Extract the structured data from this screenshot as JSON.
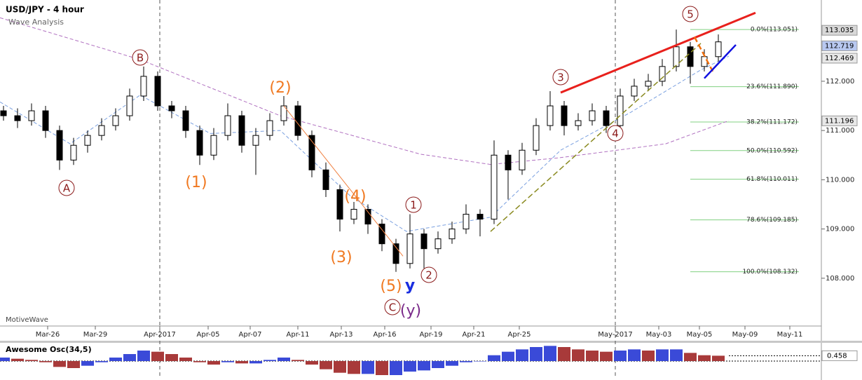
{
  "chart_data": {
    "type": "candlestick",
    "title": "USD/JPY - 4 hour",
    "subtitle": "Wave Analysis",
    "watermark": "MotiveWave",
    "xlim": [
      -0.25,
      58.35
    ],
    "ylim": [
      107.03,
      113.65
    ],
    "xticks": [
      {
        "value": 3.15,
        "label": "Mar-26"
      },
      {
        "value": 6.55,
        "label": "Mar-29"
      },
      {
        "value": 11.15,
        "label": "Apr-2017"
      },
      {
        "value": 14.6,
        "label": "Apr-05"
      },
      {
        "value": 17.6,
        "label": "Apr-07"
      },
      {
        "value": 21,
        "label": "Apr-11"
      },
      {
        "value": 24.1,
        "label": "Apr-13"
      },
      {
        "value": 27.2,
        "label": "Apr-16"
      },
      {
        "value": 30.5,
        "label": "Apr-19"
      },
      {
        "value": 33.55,
        "label": "Apr-21"
      },
      {
        "value": 36.8,
        "label": "Apr-25"
      },
      {
        "value": 43.65,
        "label": "May-2017"
      },
      {
        "value": 46.75,
        "label": "May-03"
      },
      {
        "value": 49.65,
        "label": "May-05"
      },
      {
        "value": 52.9,
        "label": "May-09"
      },
      {
        "value": 56.1,
        "label": "May-11"
      }
    ],
    "yticks": [
      {
        "value": 112,
        "label": "112.000"
      },
      {
        "value": 111,
        "label": "111.000"
      },
      {
        "value": 110,
        "label": "110.000"
      },
      {
        "value": 109,
        "label": "109.000"
      },
      {
        "value": 108,
        "label": "108.000"
      }
    ],
    "ohlc": [
      [
        111.4,
        111.5,
        111.2,
        111.3
      ],
      [
        111.3,
        111.45,
        111.05,
        111.2
      ],
      [
        111.2,
        111.55,
        111.1,
        111.4
      ],
      [
        111.4,
        111.5,
        110.85,
        111.0
      ],
      [
        111.0,
        111.1,
        110.2,
        110.4
      ],
      [
        110.4,
        110.85,
        110.3,
        110.7
      ],
      [
        110.7,
        111.0,
        110.55,
        110.9
      ],
      [
        110.9,
        111.25,
        110.8,
        111.1
      ],
      [
        111.1,
        111.45,
        111.0,
        111.3
      ],
      [
        111.3,
        111.85,
        111.2,
        111.7
      ],
      [
        111.7,
        112.3,
        111.6,
        112.1
      ],
      [
        112.1,
        112.2,
        111.4,
        111.5
      ],
      [
        111.5,
        111.6,
        111.25,
        111.4
      ],
      [
        111.4,
        111.5,
        110.85,
        111.0
      ],
      [
        111.0,
        111.1,
        110.3,
        110.5
      ],
      [
        110.5,
        111.05,
        110.4,
        110.9
      ],
      [
        110.9,
        111.55,
        110.8,
        111.3
      ],
      [
        111.3,
        111.4,
        110.55,
        110.7
      ],
      [
        110.7,
        111.05,
        110.1,
        110.9
      ],
      [
        110.9,
        111.35,
        110.8,
        111.2
      ],
      [
        111.2,
        111.7,
        111.1,
        111.5
      ],
      [
        111.5,
        111.6,
        110.8,
        110.9
      ],
      [
        110.9,
        111.0,
        110.05,
        110.2
      ],
      [
        110.2,
        110.35,
        109.65,
        109.8
      ],
      [
        109.8,
        109.9,
        108.95,
        109.2
      ],
      [
        109.2,
        109.55,
        109.1,
        109.4
      ],
      [
        109.4,
        109.5,
        108.9,
        109.1
      ],
      [
        109.1,
        109.2,
        108.55,
        108.7
      ],
      [
        108.7,
        108.8,
        108.13,
        108.3
      ],
      [
        108.3,
        109.3,
        108.2,
        108.9
      ],
      [
        108.9,
        109.0,
        108.2,
        108.6
      ],
      [
        108.6,
        108.95,
        108.5,
        108.8
      ],
      [
        108.8,
        109.15,
        108.7,
        109.0
      ],
      [
        109.0,
        109.5,
        108.9,
        109.3
      ],
      [
        109.3,
        109.4,
        108.85,
        109.2
      ],
      [
        109.2,
        110.8,
        109.1,
        110.5
      ],
      [
        110.5,
        110.6,
        109.6,
        110.2
      ],
      [
        110.2,
        110.75,
        110.1,
        110.6
      ],
      [
        110.6,
        111.25,
        110.5,
        111.1
      ],
      [
        111.1,
        111.8,
        111.0,
        111.5
      ],
      [
        111.5,
        111.6,
        110.9,
        111.1
      ],
      [
        111.1,
        111.35,
        111.0,
        111.2
      ],
      [
        111.2,
        111.55,
        111.1,
        111.4
      ],
      [
        111.4,
        111.5,
        110.95,
        111.1
      ],
      [
        111.1,
        111.85,
        111.0,
        111.7
      ],
      [
        111.7,
        112.05,
        111.6,
        111.9
      ],
      [
        111.9,
        112.15,
        111.8,
        112.0
      ],
      [
        112.0,
        112.45,
        111.9,
        112.3
      ],
      [
        112.3,
        113.05,
        112.2,
        112.7
      ],
      [
        112.7,
        112.8,
        111.95,
        112.3
      ],
      [
        112.3,
        112.65,
        112.2,
        112.5
      ],
      [
        112.5,
        112.95,
        112.4,
        112.8
      ]
    ],
    "indicators": [
      {
        "color": "#b070c0",
        "x": [
          -0.25,
          9.75,
          19.75,
          29.75,
          34.75,
          39.75,
          47.25,
          51.75
        ],
        "values": [
          113.29,
          112.44,
          111.3,
          110.52,
          110.31,
          110.45,
          110.73,
          111.2
        ]
      },
      {
        "color": "#7aa0e0",
        "x": [
          -0.25,
          4.75,
          9.75,
          14.75,
          19.75,
          24.75,
          28.75,
          34.75,
          39.75,
          44.75,
          49.75,
          51.75
        ],
        "values": [
          111.58,
          110.73,
          111.72,
          110.94,
          111.0,
          109.67,
          108.95,
          109.24,
          110.6,
          111.37,
          112.23,
          112.51
        ]
      }
    ],
    "trendlines": [
      {
        "color": "#e8201c",
        "width": 3,
        "dash": false,
        "x": [
          39.75,
          53.65
        ],
        "values": [
          111.77,
          113.39
        ]
      },
      {
        "color": "#8a8a20",
        "width": 1.5,
        "dash": true,
        "x": [
          34.75,
          49.75
        ],
        "values": [
          108.95,
          112.77
        ]
      },
      {
        "color": "#f08040",
        "width": 1,
        "dash": false,
        "x": [
          20.0,
          28.5
        ],
        "values": [
          111.5,
          108.45
        ]
      },
      {
        "color": "#f07010",
        "width": 2.5,
        "dash": true,
        "x": [
          49.3,
          50.6
        ],
        "values": [
          112.9,
          112.2
        ]
      },
      {
        "color": "#1010e0",
        "width": 2.5,
        "dash": false,
        "x": [
          50.0,
          52.25
        ],
        "values": [
          112.06,
          112.74
        ]
      }
    ],
    "fib_levels": [
      {
        "value": 113.051,
        "label": "0.0%(113.051)"
      },
      {
        "value": 111.89,
        "label": "23.6%(111.890)"
      },
      {
        "value": 111.172,
        "label": "38.2%(111.172)"
      },
      {
        "value": 110.592,
        "label": "50.0%(110.592)"
      },
      {
        "value": 110.011,
        "label": "61.8%(110.011)"
      },
      {
        "value": 109.185,
        "label": "78.6%(109.185)"
      },
      {
        "value": 108.132,
        "label": "100.0%(108.132)"
      }
    ],
    "price_tags": [
      {
        "value": 113.035,
        "color": "#d8d8d8"
      },
      {
        "value": 112.719,
        "color": "#b8c8f0"
      },
      {
        "value": 112.469,
        "color": "#e8e8e8"
      },
      {
        "value": 111.196,
        "color": "#e8e8e8"
      }
    ],
    "annotations": [
      {
        "text": "A",
        "color": "#8b1a1a",
        "circled": true
      },
      {
        "text": "B",
        "color": "#8b1a1a",
        "circled": true
      },
      {
        "text": "(1)",
        "color": "#f07820",
        "circled": false
      },
      {
        "text": "(2)",
        "color": "#f07820",
        "circled": false
      },
      {
        "text": "(3)",
        "color": "#f07820",
        "circled": false
      },
      {
        "text": "(4)",
        "color": "#f07820",
        "circled": false
      },
      {
        "text": "(5)",
        "color": "#f07820",
        "circled": false
      },
      {
        "text": "y",
        "color": "#1a2ee0",
        "circled": false
      },
      {
        "text": "C",
        "color": "#8b1a1a",
        "circled": true
      },
      {
        "text": "(y)",
        "color": "#7a2a8a",
        "circled": false
      },
      {
        "text": "1",
        "color": "#8b1a1a",
        "circled": true
      },
      {
        "text": "2",
        "color": "#8b1a1a",
        "circled": true
      },
      {
        "text": "3",
        "color": "#8b1a1a",
        "circled": true
      },
      {
        "text": "4",
        "color": "#8b1a1a",
        "circled": true
      },
      {
        "text": "5",
        "color": "#8b1a1a",
        "circled": true
      }
    ],
    "oscillator": {
      "title": "Awesome Osc(34,5)",
      "ylim": [
        -1.5,
        1.5
      ],
      "yticks": [
        0.458
      ],
      "rising_color": "#3a4ad8",
      "falling_color": "#a83a3a",
      "values": [
        0.3,
        0.2,
        0.1,
        -0.1,
        -0.5,
        -0.6,
        -0.4,
        -0.1,
        0.3,
        0.6,
        0.9,
        0.8,
        0.6,
        0.3,
        -0.1,
        -0.3,
        -0.1,
        -0.2,
        -0.2,
        0.1,
        0.3,
        0.1,
        -0.3,
        -0.7,
        -1.0,
        -1.1,
        -1.1,
        -1.2,
        -1.2,
        -0.9,
        -0.8,
        -0.6,
        -0.4,
        -0.1,
        0.0,
        0.5,
        0.8,
        1.0,
        1.2,
        1.3,
        1.2,
        1.0,
        0.9,
        0.8,
        0.9,
        1.0,
        0.9,
        1.0,
        1.0,
        0.7,
        0.5,
        0.458
      ]
    }
  }
}
